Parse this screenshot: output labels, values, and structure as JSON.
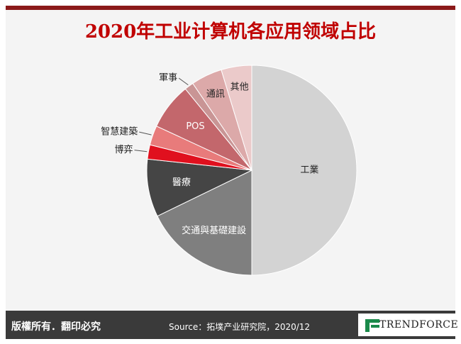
{
  "header": {
    "title": "2020年工业计算机各应用领域占比"
  },
  "chart_data": {
    "type": "pie",
    "categories": [
      "工業",
      "交通與基礎建設",
      "醫療",
      "博弈",
      "智慧建築",
      "POS",
      "軍事",
      "通訊",
      "其他"
    ],
    "values": [
      50,
      17.8,
      8.9,
      2.2,
      3,
      7.2,
      1.4,
      4.8,
      4.7
    ],
    "colors": [
      "#d3d3d3",
      "#7f7f7f",
      "#454545",
      "#e0101e",
      "#e87b7b",
      "#c3676c",
      "#c99595",
      "#dca9a9",
      "#ebcaca"
    ],
    "start_angle": 0,
    "direction": "clockwise"
  },
  "footer": {
    "copyright": "版權所有．翻印必究",
    "source": "Source：拓墣产业研究院，2020/12",
    "logo": "TRENDFORCE"
  }
}
